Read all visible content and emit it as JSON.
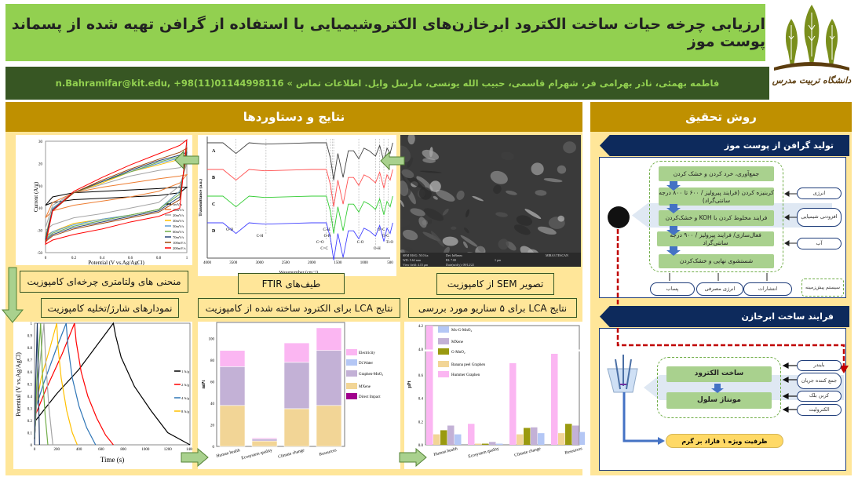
{
  "header": {
    "title": "ارزیابی چرخه حیات ساخت الکترود ابرخازن‌های الکتروشیمیایی با استفاده از گرافن تهیه شده از پسماند پوست موز",
    "contact": "فاطمه بهمئی، نادر بهرامی فر، شهرام قاسمی، حبیب الله یونسی، مارسل وایل.  اطلاعات تماس » n.Bahramifar@kit.edu, +98(11)01144998116",
    "logo_text": "دانشگاه تربیت مدرس",
    "colors": {
      "title_bg": "#92d050",
      "contact_bg": "#375623",
      "section_bg": "#bf9000",
      "panel_bg": "#ffe699",
      "banner": "#0d2a5c"
    }
  },
  "results": {
    "heading": "نتایج و دستاوردها",
    "captions": {
      "cv": "منحنی های ولتامتری چرخه‌ای کامپوزیت",
      "ftir": "طیف‌های  FTIR",
      "sem": "تصویر  SEM از کامپوزیت",
      "gcd": "نمودارهای شارژ/تخلیه کامپوزیت",
      "lca_electrode": "نتایج  LCA برای الکترود ساخته شده از کامپوزیت",
      "lca_scenarios": "نتایج  LCA برای ۵ سناریو مورد بررسی"
    },
    "sem_info": [
      "SEM MAG: 50.0 kx",
      "Det: InBeam",
      "WD: 5.62 mm",
      "BI: 7.00",
      "View field: 4.15 μm",
      "Date(m/d/y): 09/12/22",
      "1 μm",
      "MIRA3 TESCAN"
    ]
  },
  "methods": {
    "heading": "روش تحقیق",
    "graphene": {
      "banner": "تولید گرافن از پوست موز",
      "steps": [
        "جمع‌آوری، خرد کردن و خشک کردن",
        "کربنیزه کردن (فرایند پیرولیز / ۶۰۰ تا ۸۰۰ درجه سانتی‌گراد)",
        "فرایند مخلوط کردن با  KOH و خشک‌کردن",
        "فعال‌سازی/ فرایند پیرولیز / ۹۰۰ درجه سانتی‌گراد",
        "شستشوی نهایی و خشک‌کردن"
      ],
      "inputs": [
        "انرژی",
        "افزودنی شیمیایی",
        "آب"
      ],
      "outputs": [
        "پساب",
        "انرژی مصرفی",
        "انتشارات"
      ],
      "legend": "سیستم پیش‌زمینه"
    },
    "supercap": {
      "banner": "فرایند ساخت ابرخازن",
      "steps": [
        "ساخت الکترود",
        "مونتاژ سلول"
      ],
      "inputs": [
        "بایندر",
        "جمع کننده جریان",
        "کربن بلک",
        "الکترولیت"
      ],
      "result": "ظرفیت ویژه ۱ فاراد بر گرم"
    }
  },
  "chart_data": [
    {
      "id": "cv",
      "type": "line",
      "xlabel": "Potential (V vs.Ag/AgCl)",
      "ylabel": "Current (A/g)",
      "xlim": [
        0,
        1
      ],
      "x_ticks": [
        "0",
        "0.2",
        "0.4",
        "0.6",
        "0.8",
        "1"
      ],
      "ylim": [
        -50,
        30
      ],
      "y_ticks": [
        "30",
        "20",
        "10",
        "-10",
        "-30",
        "-50"
      ],
      "legend": "bottom-right",
      "x": [
        0,
        0.05,
        0.2,
        0.4,
        0.6,
        0.8,
        0.95,
        1
      ],
      "series": [
        {
          "name": "5mV/s",
          "color": "#000000",
          "upper": [
            -16,
            -10,
            -7,
            -6,
            -5,
            -4,
            -3,
            -3
          ],
          "lower": [
            -16,
            -14,
            -12,
            -11,
            -10,
            -9,
            -7,
            -3
          ]
        },
        {
          "name": "10mV/s",
          "color": "#ed7d31",
          "upper": [
            -25,
            -14,
            -7,
            -3,
            0,
            3,
            5,
            6
          ],
          "lower": [
            -25,
            -20,
            -16,
            -13,
            -10,
            -6,
            0,
            6
          ]
        },
        {
          "name": "20mV/s",
          "color": "#a5a5a5",
          "upper": [
            -32,
            -16,
            -7,
            -1,
            5,
            9,
            11,
            14
          ],
          "lower": [
            -34,
            -30,
            -25,
            -22,
            -18,
            -14,
            -2,
            14
          ]
        },
        {
          "name": "30mV/s",
          "color": "#ffc000",
          "upper": [
            -38,
            -18,
            -7,
            0,
            8,
            13,
            17,
            18
          ],
          "lower": [
            -38,
            -35,
            -29,
            -26,
            -23,
            -19,
            -6,
            18
          ]
        },
        {
          "name": "50mV/s",
          "color": "#5b9bd5",
          "upper": [
            -39,
            -18,
            -7,
            1,
            8,
            14,
            18,
            19
          ],
          "lower": [
            -39,
            -35,
            -30,
            -26,
            -23,
            -19,
            -6,
            19
          ]
        },
        {
          "name": "60mV/s",
          "color": "#70ad47",
          "upper": [
            -40,
            -19,
            -7,
            1,
            8,
            15,
            19,
            20
          ],
          "lower": [
            -40,
            -36,
            -31,
            -27,
            -23,
            -19,
            -8,
            20
          ]
        },
        {
          "name": "70mV/s",
          "color": "#264478",
          "upper": [
            -40,
            -19,
            -7,
            1,
            9,
            16,
            20,
            22
          ],
          "lower": [
            -41,
            -37,
            -32,
            -28,
            -24,
            -20,
            -10,
            22
          ]
        },
        {
          "name": "100mV/s",
          "color": "#9e480e",
          "upper": [
            -42,
            -20,
            -7,
            2,
            10,
            17,
            22,
            25
          ],
          "lower": [
            -42,
            -38,
            -33,
            -29,
            -25,
            -21,
            -12,
            25
          ]
        },
        {
          "name": "200mV/s",
          "color": "#ff0000",
          "upper": [
            -44,
            -20,
            -6,
            4,
            13,
            21,
            27,
            31
          ],
          "lower": [
            -44,
            -41,
            -37,
            -33,
            -28,
            -24,
            -18,
            31
          ]
        }
      ]
    },
    {
      "id": "ftir",
      "type": "line",
      "xlabel": "Wavenumber (cm⁻¹)",
      "ylabel": "Transmittance (a.u.)",
      "xlim": [
        4000,
        500
      ],
      "x_ticks": [
        4000,
        3500,
        3000,
        2500,
        2000,
        1500,
        1000,
        500
      ],
      "profile": [
        [
          4000,
          0
        ],
        [
          3700,
          0
        ],
        [
          3450,
          -0.4
        ],
        [
          3200,
          0
        ],
        [
          2900,
          -0.05
        ],
        [
          2000,
          0
        ],
        [
          1720,
          0
        ],
        [
          1640,
          -0.6
        ],
        [
          1580,
          -1.4
        ],
        [
          1500,
          -0.4
        ],
        [
          1400,
          -1.3
        ],
        [
          1300,
          -0.3
        ],
        [
          1200,
          -0.3
        ],
        [
          1100,
          -0.6
        ],
        [
          1000,
          -0.2
        ],
        [
          900,
          -0.3
        ],
        [
          780,
          -0.5
        ],
        [
          700,
          -0.1
        ],
        [
          620,
          -0.7
        ],
        [
          560,
          -0.2
        ],
        [
          500,
          -0.4
        ],
        [
          450,
          0
        ]
      ],
      "series": [
        {
          "name": "A",
          "color": "#404040",
          "baseline": 3
        },
        {
          "name": "B",
          "color": "#ff5050",
          "baseline": 2
        },
        {
          "name": "C",
          "color": "#33cc33",
          "baseline": 1
        },
        {
          "name": "D",
          "color": "#4040ff",
          "baseline": 0
        }
      ],
      "annotations": [
        {
          "label": "O-H",
          "wn": 3450
        },
        {
          "label": "C-H",
          "wn": 2875
        },
        {
          "label": "C=O",
          "wn": 1720
        },
        {
          "label": "C=C",
          "wn": 1640
        },
        {
          "label": "C-H",
          "wn": 1600
        },
        {
          "label": "O-H",
          "wn": 1580
        },
        {
          "label": "C-O",
          "wn": 1100
        },
        {
          "label": "O-H",
          "wn": 780
        },
        {
          "label": "O=C",
          "wn": 700
        },
        {
          "label": "Ti-C",
          "wn": 620
        },
        {
          "label": "Ti-O",
          "wn": 540
        }
      ]
    },
    {
      "id": "gcd",
      "type": "line",
      "xlabel": "Time (s)",
      "ylabel": "Potential (V vs.Ag/AgCl)",
      "xlim": [
        0,
        1400
      ],
      "x_ticks": [
        0,
        200,
        400,
        600,
        800,
        1000,
        1200,
        1400
      ],
      "ylim": [
        0,
        1
      ],
      "y_ticks": [
        0,
        0.1,
        0.2,
        0.3,
        0.4,
        0.5,
        0.6,
        0.7,
        0.8,
        0.9,
        1
      ],
      "legend": "right",
      "series": [
        {
          "name": "1 A/g",
          "color": "#000000",
          "points": [
            [
              0,
              0.05
            ],
            [
              10,
              0.2
            ],
            [
              200,
              0.42
            ],
            [
              400,
              0.62
            ],
            [
              710,
              1
            ],
            [
              730,
              0.9
            ],
            [
              780,
              0.72
            ],
            [
              900,
              0.48
            ],
            [
              1050,
              0.28
            ],
            [
              1200,
              0.1
            ],
            [
              1400,
              0
            ]
          ]
        },
        {
          "name": "2 A/g",
          "color": "#ff0000",
          "points": [
            [
              0,
              0.05
            ],
            [
              10,
              0.25
            ],
            [
              100,
              0.45
            ],
            [
              250,
              0.75
            ],
            [
              360,
              1
            ],
            [
              375,
              0.85
            ],
            [
              420,
              0.6
            ],
            [
              480,
              0.4
            ],
            [
              560,
              0.22
            ],
            [
              640,
              0.08
            ],
            [
              710,
              0
            ]
          ]
        },
        {
          "name": "4 A/g",
          "color": "#2e75b6",
          "points": [
            [
              0,
              0.05
            ],
            [
              10,
              0.3
            ],
            [
              80,
              0.5
            ],
            [
              200,
              0.8
            ],
            [
              285,
              1
            ],
            [
              300,
              0.82
            ],
            [
              340,
              0.55
            ],
            [
              400,
              0.32
            ],
            [
              470,
              0.14
            ],
            [
              550,
              0
            ]
          ]
        },
        {
          "name": "8 A/g",
          "color": "#ffc000",
          "points": [
            [
              0,
              0.05
            ],
            [
              10,
              0.3
            ],
            [
              60,
              0.55
            ],
            [
              140,
              0.8
            ],
            [
              200,
              1
            ],
            [
              212,
              0.8
            ],
            [
              240,
              0.55
            ],
            [
              290,
              0.28
            ],
            [
              340,
              0.1
            ],
            [
              385,
              0
            ]
          ]
        },
        {
          "color": "#a5a5a5",
          "points": [
            [
              0,
              0.05
            ],
            [
              30,
              0.5
            ],
            [
              85,
              1
            ],
            [
              100,
              0.7
            ],
            [
              130,
              0.3
            ],
            [
              165,
              0
            ]
          ]
        },
        {
          "color": "#70ad47",
          "points": [
            [
              0,
              0.05
            ],
            [
              20,
              0.5
            ],
            [
              55,
              1
            ],
            [
              70,
              0.6
            ],
            [
              95,
              0.25
            ],
            [
              120,
              0
            ]
          ]
        },
        {
          "color": "#1f3864",
          "points": [
            [
              0,
              0
            ],
            [
              10,
              0.5
            ],
            [
              25,
              1
            ],
            [
              32,
              0.6
            ],
            [
              45,
              0
            ]
          ]
        }
      ]
    },
    {
      "id": "lca_electrode",
      "type": "bar",
      "stacked": true,
      "ylabel": "mPt",
      "ylim": [
        0,
        115
      ],
      "y_ticks": [
        0,
        20,
        40,
        60,
        80,
        100
      ],
      "legend": "right",
      "categories": [
        "Human health",
        "Ecosystem quality",
        "Climate change",
        "Resources"
      ],
      "series": [
        {
          "name": "MXene",
          "color": "#f2d596",
          "values": [
            38,
            5,
            35,
            38
          ]
        },
        {
          "name": "Graphen-MnO₂",
          "color": "#c3b1d6",
          "values": [
            36,
            2,
            43,
            51
          ]
        },
        {
          "name": "Di.Water",
          "color": "#b4c7f5",
          "values": [
            0,
            0,
            0,
            0
          ]
        },
        {
          "name": "Electricity",
          "color": "#fbb6f2",
          "values": [
            15,
            1,
            18,
            21
          ]
        },
        {
          "name": "Direct Impact",
          "color": "#a0008c",
          "values": [
            0,
            0,
            0,
            0
          ]
        }
      ],
      "legend_order": [
        "Electricity",
        "Di.Water",
        "Graphen-MnO₂",
        "MXene",
        "Direct Impact"
      ]
    },
    {
      "id": "lca_scenarios",
      "type": "bar",
      "ylabel": "μPt",
      "ylim": [
        0,
        0.8
      ],
      "y_break": [
        4.0,
        4.2
      ],
      "y_ticks": [
        0,
        0.2,
        0.4,
        0.6,
        4.0,
        4.2
      ],
      "legend": "top-left",
      "categories": [
        "Human health",
        "Ecosystem quality",
        "Climate change",
        "Resources"
      ],
      "series": [
        {
          "name": "Hummer Graphen",
          "color": "#fbb6f2",
          "values": [
            4.2,
            0.18,
            0.7,
            0.78
          ]
        },
        {
          "name": "Banana peel Graphen",
          "color": "#f2d596",
          "values": [
            0.09,
            0.01,
            0.09,
            0.1
          ]
        },
        {
          "name": "G-MnO₂",
          "color": "#9a9a10",
          "values": [
            0.125,
            0.01,
            0.145,
            0.18
          ]
        },
        {
          "name": "MXene",
          "color": "#c3b1d6",
          "values": [
            0.165,
            0.025,
            0.15,
            0.165
          ]
        },
        {
          "name": "Mx-G-MnO₂",
          "color": "#b4c7f5",
          "values": [
            0.09,
            0.01,
            0.1,
            0.11
          ]
        }
      ],
      "legend_order": [
        "Mx-G-MnO₂",
        "MXene",
        "G-MnO₂",
        "Banana peel Graphen",
        "Hummer Graphen"
      ]
    }
  ]
}
